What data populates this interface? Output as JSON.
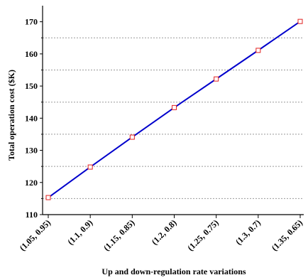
{
  "chart_data": {
    "type": "line",
    "title": "",
    "xlabel": "Up and down-regulation rate variations",
    "ylabel": "Total operation cost ($K)",
    "categories": [
      "(1.05, 0.95)",
      "(1.1, 0.9)",
      "(1.15, 0.85)",
      "(1.2, 0.8)",
      "(1.25, 0.75)",
      "(1.3, 0.7)",
      "(1.35, 0.65)"
    ],
    "series": [
      {
        "values": [
          115.3,
          124.8,
          134.1,
          143.3,
          152.2,
          161.1,
          170.1
        ]
      }
    ],
    "ylim": [
      110,
      175
    ],
    "yticks": [
      110,
      120,
      130,
      140,
      150,
      160,
      170
    ],
    "grid": {
      "y_dashed_at": [
        115,
        125,
        135,
        145,
        155,
        165
      ]
    },
    "colors": {
      "line": "#0000cc",
      "marker": "#e02020",
      "grid": "#999999",
      "axis": "#000000"
    }
  }
}
